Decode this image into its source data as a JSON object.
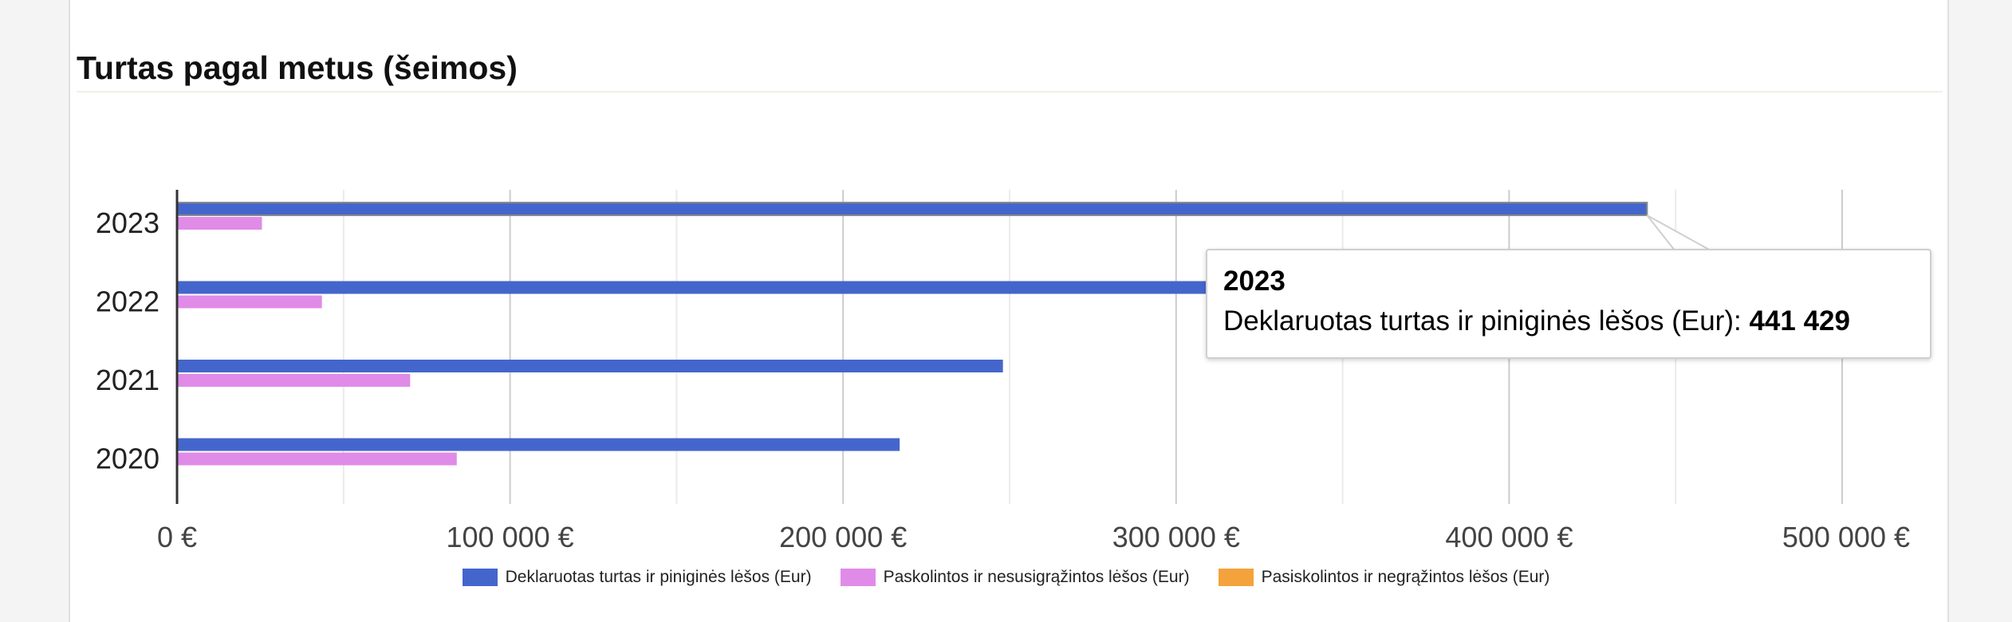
{
  "page": {
    "title": "Turtas pagal metus (šeimos)"
  },
  "chart_data": {
    "type": "bar",
    "orientation": "horizontal",
    "categories": [
      "2023",
      "2022",
      "2021",
      "2020"
    ],
    "series": [
      {
        "name": "Deklaruotas turtas ir piniginės lėšos (Eur)",
        "color": "#4466cc",
        "values": [
          441429,
          310000,
          248000,
          217000
        ]
      },
      {
        "name": "Paskolintos ir nesusigrąžintos lėšos (Eur)",
        "color": "#e08be8",
        "values": [
          25500,
          43500,
          70000,
          84000
        ]
      },
      {
        "name": "Pasiskolintos ir negrąžintos lėšos (Eur)",
        "color": "#f4a23c",
        "values": [
          0,
          0,
          0,
          0
        ]
      }
    ],
    "xlim": [
      0,
      500000
    ],
    "x_ticks": [
      0,
      100000,
      200000,
      300000,
      400000,
      500000
    ],
    "x_tick_labels": [
      "0 €",
      "100 000 €",
      "200 000 €",
      "300 000 €",
      "400 000 €",
      "500 000 €"
    ],
    "grid": true,
    "legend": "bottom",
    "tooltip": {
      "title": "2023",
      "label": "Deklaruotas turtas ir piniginės lėšos (Eur):",
      "value": "441 429"
    }
  }
}
